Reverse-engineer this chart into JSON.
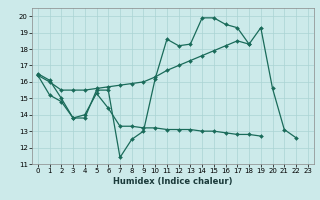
{
  "xlabel": "Humidex (Indice chaleur)",
  "bg_color": "#cceaea",
  "line_color": "#1a6b5a",
  "grid_color": "#aad4d4",
  "xlim": [
    -0.5,
    23.5
  ],
  "ylim": [
    11,
    20.5
  ],
  "yticks": [
    11,
    12,
    13,
    14,
    15,
    16,
    17,
    18,
    19,
    20
  ],
  "xticks": [
    0,
    1,
    2,
    3,
    4,
    5,
    6,
    7,
    8,
    9,
    10,
    11,
    12,
    13,
    14,
    15,
    16,
    17,
    18,
    19,
    20,
    21,
    22,
    23
  ],
  "series": [
    {
      "x": [
        0,
        1,
        2,
        3,
        4,
        5,
        6,
        7,
        8,
        9,
        10,
        11,
        12,
        13,
        14,
        15,
        16,
        17,
        18,
        19,
        20,
        21,
        22
      ],
      "y": [
        16.5,
        16.1,
        15.0,
        13.8,
        13.8,
        15.5,
        15.5,
        11.4,
        12.5,
        13.0,
        16.2,
        18.6,
        18.2,
        18.3,
        19.9,
        19.9,
        19.5,
        19.3,
        18.3,
        19.3,
        15.6,
        13.1,
        12.6
      ]
    },
    {
      "x": [
        0,
        1,
        2,
        3,
        4,
        5,
        6,
        7,
        8,
        9,
        10,
        11,
        12,
        13,
        14,
        15,
        16,
        17,
        18
      ],
      "y": [
        16.4,
        16.0,
        15.5,
        15.5,
        15.5,
        15.6,
        15.7,
        15.8,
        15.9,
        16.0,
        16.3,
        16.7,
        17.0,
        17.3,
        17.6,
        17.9,
        18.2,
        18.5,
        18.3
      ]
    },
    {
      "x": [
        0,
        1,
        2,
        3,
        4,
        5,
        6,
        7,
        8,
        9,
        10,
        11,
        12,
        13,
        14,
        15,
        16,
        17,
        18,
        19,
        20,
        21,
        22
      ],
      "y": [
        16.4,
        15.2,
        14.8,
        13.8,
        14.0,
        15.3,
        14.4,
        13.3,
        13.3,
        13.2,
        13.2,
        13.1,
        13.1,
        13.1,
        13.0,
        13.0,
        12.9,
        12.8,
        12.8,
        12.7,
        null,
        null,
        null
      ]
    }
  ]
}
